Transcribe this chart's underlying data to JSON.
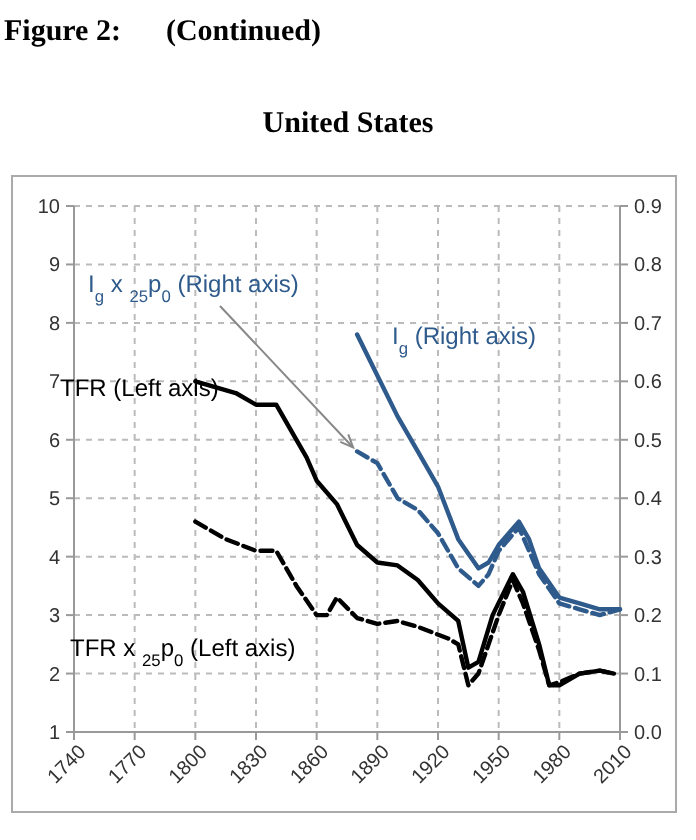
{
  "chart_data": {
    "type": "line",
    "title": "United States",
    "annotations": [
      "Figure 2:      (Continued)"
    ],
    "xlim": [
      1740,
      2010
    ],
    "xticks": [
      1740,
      1770,
      1800,
      1830,
      1860,
      1890,
      1920,
      1950,
      1980,
      2010
    ],
    "ylim": [
      1,
      10
    ],
    "yticks": [
      1,
      2,
      3,
      4,
      5,
      6,
      7,
      8,
      9,
      10
    ],
    "y2lim": [
      0,
      0.9
    ],
    "y2ticks": [
      {
        "value": 0,
        "label": "0.0"
      },
      0.1,
      0.2,
      0.3,
      0.4,
      0.5,
      0.6,
      0.7,
      0.8,
      0.9
    ],
    "grid": true,
    "series": [
      {
        "name": "TFR (Left axis)",
        "color": "#000000",
        "line_style": "solid",
        "x": [
          1800,
          1820,
          1830,
          1840,
          1850,
          1855,
          1860,
          1870,
          1880,
          1890,
          1900,
          1910,
          1920,
          1930,
          1935,
          1940,
          1947,
          1957,
          1962,
          1970,
          1975,
          1980,
          1990,
          2000,
          2007
        ],
        "values": [
          7.0,
          6.8,
          6.6,
          6.6,
          6.0,
          5.7,
          5.3,
          4.9,
          4.2,
          3.9,
          3.85,
          3.6,
          3.2,
          2.9,
          2.1,
          2.2,
          3.0,
          3.7,
          3.4,
          2.5,
          1.8,
          1.8,
          2.0,
          2.05,
          2.0
        ]
      },
      {
        "name": "TFR x $_{25}$p$_{0}$ (Left axis)",
        "color": "#000000",
        "line_style": "dashed",
        "x": [
          1800,
          1815,
          1830,
          1840,
          1850,
          1860,
          1865,
          1870,
          1880,
          1890,
          1900,
          1910,
          1925,
          1930,
          1935,
          1940,
          1950,
          1957,
          1962,
          1970,
          1975,
          1980,
          1990,
          2000,
          2007
        ],
        "values": [
          4.6,
          4.3,
          4.1,
          4.1,
          3.5,
          3.0,
          3.0,
          3.3,
          2.95,
          2.85,
          2.9,
          2.8,
          2.6,
          2.5,
          1.8,
          2.0,
          3.0,
          3.6,
          3.2,
          2.4,
          1.8,
          1.85,
          2.0,
          2.05,
          2.0
        ]
      },
      {
        "name": "I$_{g}$ (Right axis)",
        "color": "#2e5a8c",
        "line_style": "solid",
        "axis": "y2",
        "x": [
          1880,
          1890,
          1900,
          1910,
          1920,
          1930,
          1940,
          1945,
          1950,
          1960,
          1965,
          1970,
          1980,
          1990,
          2000,
          2010
        ],
        "values": [
          0.68,
          0.61,
          0.54,
          0.48,
          0.42,
          0.33,
          0.28,
          0.29,
          0.32,
          0.36,
          0.33,
          0.28,
          0.23,
          0.22,
          0.21,
          0.21
        ]
      },
      {
        "name": "I$_{g}$ x $_{25}$p$_{0}$ (Right axis)",
        "color": "#2e5a8c",
        "line_style": "dashed",
        "axis": "y2",
        "x": [
          1880,
          1890,
          1900,
          1910,
          1920,
          1930,
          1940,
          1945,
          1950,
          1960,
          1965,
          1970,
          1980,
          1990,
          2000,
          2010
        ],
        "values": [
          0.48,
          0.46,
          0.4,
          0.38,
          0.34,
          0.28,
          0.25,
          0.27,
          0.31,
          0.35,
          0.31,
          0.27,
          0.22,
          0.21,
          0.2,
          0.21
        ]
      }
    ]
  }
}
